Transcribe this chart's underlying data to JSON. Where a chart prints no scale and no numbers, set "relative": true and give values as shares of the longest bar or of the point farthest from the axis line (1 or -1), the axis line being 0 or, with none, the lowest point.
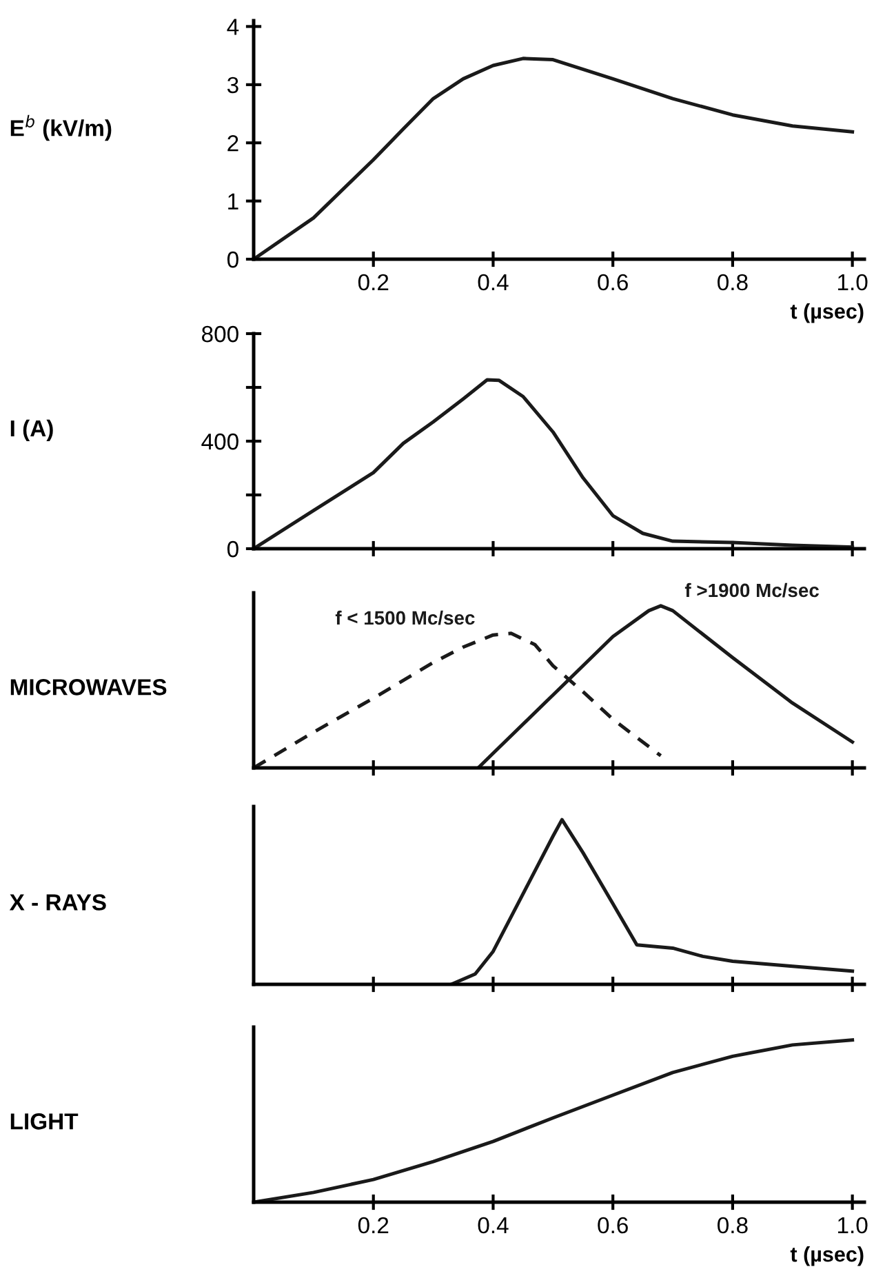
{
  "chart_data": [
    {
      "type": "line",
      "xlabel": "t (µsec)",
      "ylabel": "E$^{b}$ (kV/m)",
      "xlim": [
        0,
        1.02
      ],
      "ylim": [
        0,
        4.1
      ],
      "xticks": [
        0.2,
        0.4,
        0.6,
        0.8,
        {
          "value": 1.0,
          "label": "1.0"
        }
      ],
      "yticks": [
        0,
        1,
        2,
        3,
        4
      ],
      "grid": false,
      "legend": false,
      "series": [
        {
          "color": "#1a1a1a",
          "x": [
            0,
            0.1,
            0.2,
            0.25,
            0.3,
            0.35,
            0.4,
            0.45,
            0.5,
            0.6,
            0.7,
            0.8,
            0.9,
            1.0
          ],
          "values": [
            0,
            0.71,
            1.71,
            2.24,
            2.76,
            3.1,
            3.33,
            3.45,
            3.43,
            3.1,
            2.76,
            2.48,
            2.29,
            2.19
          ]
        }
      ]
    },
    {
      "type": "line",
      "ylabel": "I (A)",
      "xlim": [
        0,
        1.02
      ],
      "ylim": [
        0,
        800
      ],
      "xticks": [
        {
          "value": 0.2,
          "label": null
        },
        {
          "value": 0.4,
          "label": null
        },
        {
          "value": 0.6,
          "label": null
        },
        {
          "value": 0.8,
          "label": null
        },
        {
          "value": 1.0,
          "label": null
        }
      ],
      "yticks": [
        0,
        {
          "value": 200,
          "label": null
        },
        400,
        {
          "value": 600,
          "label": null
        },
        800
      ],
      "tick_labels": "y",
      "grid": false,
      "legend": false,
      "series": [
        {
          "color": "#1a1a1a",
          "x": [
            0,
            0.1,
            0.2,
            0.25,
            0.3,
            0.35,
            0.39,
            0.41,
            0.45,
            0.5,
            0.55,
            0.6,
            0.65,
            0.7,
            0.8,
            0.9,
            1.0
          ],
          "values": [
            0,
            142,
            283,
            392,
            472,
            557,
            628,
            626,
            566,
            434,
            264,
            123,
            57,
            28,
            23,
            13,
            6
          ]
        }
      ]
    },
    {
      "type": "line",
      "ylabel": "MICROWAVES",
      "relative": true,
      "xlim": [
        0,
        1.02
      ],
      "xticks": [
        {
          "value": 0.2,
          "label": null
        },
        {
          "value": 0.4,
          "label": null
        },
        {
          "value": 0.6,
          "label": null
        },
        {
          "value": 0.8,
          "label": null
        },
        {
          "value": 1.0,
          "label": null
        }
      ],
      "tick_labels": false,
      "grid": false,
      "legend": false,
      "series": [
        {
          "name": "f < 1500 Mc/sec",
          "color": "#1a1a1a",
          "line_style": "dashed",
          "x": [
            0,
            0.1,
            0.2,
            0.3,
            0.35,
            0.4,
            0.43,
            0.47,
            0.5,
            0.55,
            0.6,
            0.68
          ],
          "values": [
            0,
            0.22,
            0.43,
            0.65,
            0.745,
            0.82,
            0.83,
            0.76,
            0.63,
            0.47,
            0.3,
            0.075
          ]
        },
        {
          "name": "f >1900 Mc/sec",
          "color": "#1a1a1a",
          "line_style": "solid",
          "x": [
            0.375,
            0.4,
            0.5,
            0.6,
            0.66,
            0.68,
            0.7,
            0.8,
            0.9,
            1.0
          ],
          "values": [
            0,
            0.09,
            0.45,
            0.81,
            0.97,
            1.0,
            0.97,
            0.68,
            0.4,
            0.16
          ]
        }
      ]
    },
    {
      "type": "line",
      "ylabel": "X - RAYS",
      "relative": true,
      "xlim": [
        0,
        1.02
      ],
      "xticks": [
        {
          "value": 0.2,
          "label": null
        },
        {
          "value": 0.4,
          "label": null
        },
        {
          "value": 0.6,
          "label": null
        },
        {
          "value": 0.8,
          "label": null
        },
        {
          "value": 1.0,
          "label": null
        }
      ],
      "tick_labels": false,
      "grid": false,
      "legend": false,
      "series": [
        {
          "color": "#1a1a1a",
          "x": [
            0.33,
            0.37,
            0.4,
            0.45,
            0.5,
            0.515,
            0.55,
            0.6,
            0.64,
            0.7,
            0.75,
            0.8,
            0.9,
            1.0
          ],
          "values": [
            0,
            0.063,
            0.2,
            0.55,
            0.9,
            1.0,
            0.8,
            0.49,
            0.24,
            0.22,
            0.17,
            0.14,
            0.11,
            0.08
          ]
        }
      ]
    },
    {
      "type": "line",
      "ylabel": "LIGHT",
      "xlabel": "t (µsec)",
      "relative": true,
      "xlim": [
        0,
        1.02
      ],
      "xticks": [
        0.2,
        0.4,
        0.6,
        0.8,
        {
          "value": 1.0,
          "label": "1.0"
        }
      ],
      "tick_labels": "x",
      "grid": false,
      "legend": false,
      "series": [
        {
          "color": "#1a1a1a",
          "x": [
            0,
            0.1,
            0.2,
            0.3,
            0.4,
            0.5,
            0.6,
            0.7,
            0.8,
            0.9,
            1.0
          ],
          "values": [
            0,
            0.06,
            0.14,
            0.25,
            0.375,
            0.52,
            0.66,
            0.8,
            0.9,
            0.97,
            1.0
          ]
        }
      ]
    }
  ]
}
